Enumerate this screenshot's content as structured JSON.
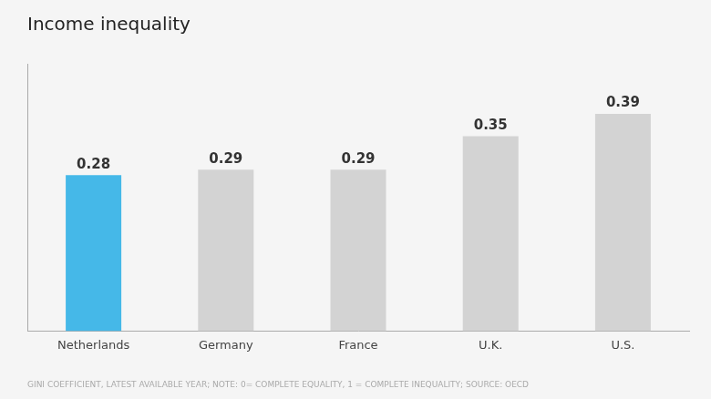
{
  "chart_data": {
    "type": "bar",
    "title": "Income inequality",
    "categories": [
      "Netherlands",
      "Germany",
      "France",
      "U.K.",
      "U.S."
    ],
    "values": [
      0.28,
      0.29,
      0.29,
      0.35,
      0.39
    ],
    "colors": [
      "#45b8e8",
      "#d3d3d3",
      "#d3d3d3",
      "#d3d3d3",
      "#d3d3d3"
    ],
    "ylim": [
      0,
      0.48
    ],
    "data_labels": true,
    "tick_labels": "x",
    "grid": false,
    "footnote": "GINI COEFFICIENT, LATEST AVAILABLE YEAR; NOTE: 0= COMPLETE EQUALITY, 1 = COMPLETE INEQUALITY; SOURCE: OECD"
  }
}
